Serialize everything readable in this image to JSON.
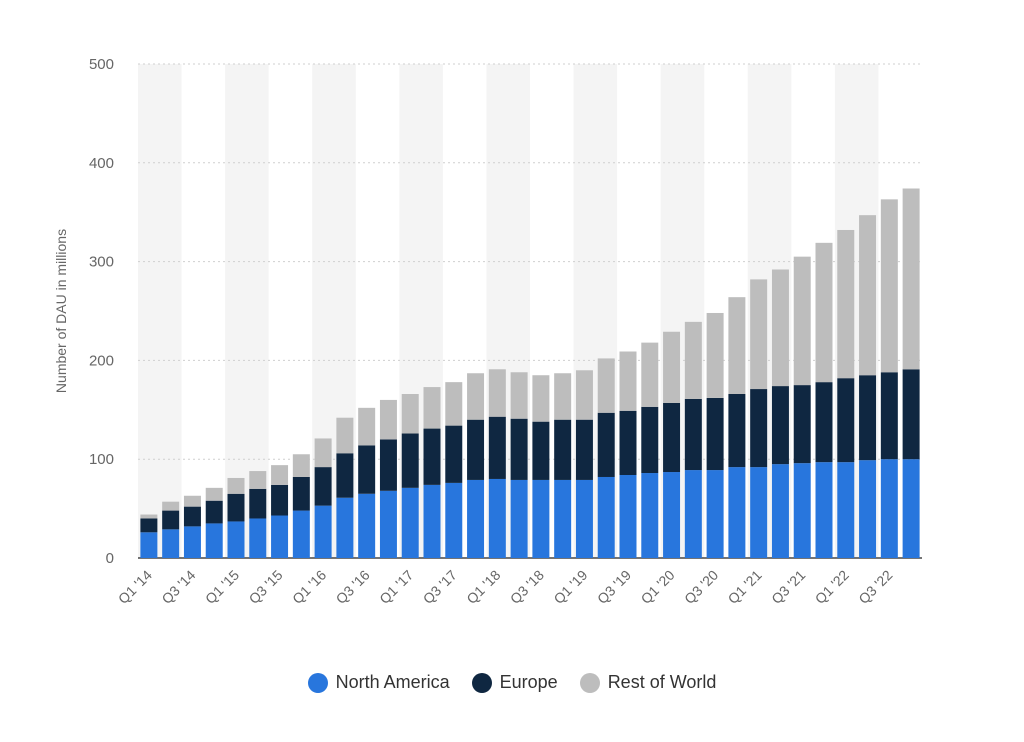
{
  "chart_data": {
    "type": "bar",
    "stacked": true,
    "ylabel": "Number of DAU in millions",
    "xlabel": "",
    "ylim": [
      0,
      500
    ],
    "yticks": [
      0,
      100,
      200,
      300,
      400,
      500
    ],
    "grid": true,
    "legend_position": "bottom-center",
    "categories": [
      "Q1 '14",
      "Q2 '14",
      "Q3 '14",
      "Q4 '14",
      "Q1 '15",
      "Q2 '15",
      "Q3 '15",
      "Q4 '15",
      "Q1 '16",
      "Q2 '16",
      "Q3 '16",
      "Q4 '16",
      "Q1 '17",
      "Q2 '17",
      "Q3 '17",
      "Q4 '17",
      "Q1 '18",
      "Q2 '18",
      "Q3 '18",
      "Q4 '18",
      "Q1 '19",
      "Q2 '19",
      "Q3 '19",
      "Q4 '19",
      "Q1 '20",
      "Q2 '20",
      "Q3 '20",
      "Q4 '20",
      "Q1 '21",
      "Q2 '21",
      "Q3 '21",
      "Q4 '21",
      "Q1 '22",
      "Q2 '22",
      "Q3 '22",
      "Q4 '22"
    ],
    "xtick_labels": [
      "Q1 '14",
      "Q3 '14",
      "Q1 '15",
      "Q3 '15",
      "Q1 '16",
      "Q3 '16",
      "Q1 '17",
      "Q3 '17",
      "Q1 '18",
      "Q3 '18",
      "Q1 '19",
      "Q3 '19",
      "Q1 '20",
      "Q3 '20",
      "Q1 '21",
      "Q3 '21",
      "Q1 '22",
      "Q3 '22"
    ],
    "series": [
      {
        "name": "North America",
        "color": "#2876dd",
        "values": [
          26,
          29,
          32,
          35,
          37,
          40,
          43,
          48,
          53,
          61,
          65,
          68,
          71,
          74,
          76,
          79,
          80,
          79,
          79,
          79,
          79,
          82,
          84,
          86,
          87,
          89,
          89,
          92,
          92,
          95,
          96,
          97,
          97,
          99,
          100,
          100
        ]
      },
      {
        "name": "Europe",
        "color": "#0f2741",
        "values": [
          14,
          19,
          20,
          23,
          28,
          30,
          31,
          34,
          39,
          45,
          49,
          52,
          55,
          57,
          58,
          61,
          63,
          62,
          59,
          61,
          61,
          65,
          65,
          67,
          70,
          72,
          73,
          74,
          79,
          79,
          79,
          81,
          85,
          86,
          88,
          91
        ]
      },
      {
        "name": "Rest of World",
        "color": "#bdbdbd",
        "values": [
          4,
          9,
          11,
          13,
          16,
          18,
          20,
          23,
          29,
          36,
          38,
          40,
          40,
          42,
          44,
          47,
          48,
          47,
          47,
          47,
          50,
          55,
          60,
          65,
          72,
          78,
          86,
          98,
          111,
          118,
          130,
          141,
          150,
          162,
          175,
          183
        ]
      }
    ]
  }
}
